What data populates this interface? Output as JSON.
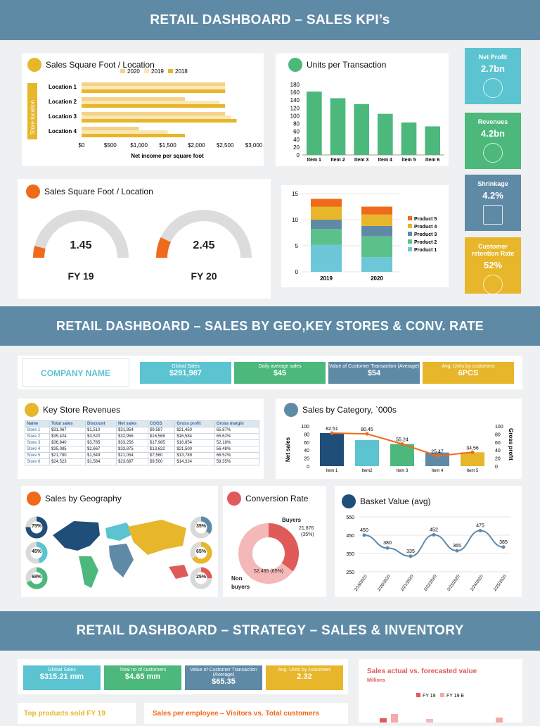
{
  "bands": {
    "b1": "RETAIL DASHBOARD – SALES KPI’s",
    "b2": "RETAIL DASHBOARD – SALES BY GEO,KEY STORES & CONV. RATE",
    "b3": "RETAIL DASHBOARD – STRATEGY – SALES & INVENTORY"
  },
  "panels": {
    "sqft1": "Sales Square Foot / Location",
    "upt": "Units per Transaction",
    "sqft2": "Sales Square Foot / Location",
    "keystore": "Key Store Revenues",
    "category": "Sales by Category, `000s",
    "geo": "Sales by Geography",
    "conv": "Conversion Rate",
    "basket": "Basket Value (avg)",
    "actual": "Sales actual vs. forecasted value",
    "actual_sub": "Millions",
    "top": "Top products sold FY 19",
    "perEmp": "Sales per employee – Visitors vs. Total customers"
  },
  "kpis": [
    {
      "label": "Net Profit",
      "value": "2.7bn",
      "color": "#5bc4d0",
      "icon": "money-cycle-icon"
    },
    {
      "label": "Revenues",
      "value": "4.2bn",
      "color": "#4cb87c",
      "icon": "hand-coin-icon"
    },
    {
      "label": "Shrinkage",
      "value": "4.2%",
      "color": "#5f8aa6",
      "icon": "shrink-arrow-icon"
    },
    {
      "label": "Customer retention Rate",
      "value": "52%",
      "color": "#e7b62a",
      "icon": "pie-icon"
    }
  ],
  "gauges": [
    {
      "value": "1.45",
      "label": "FY 19",
      "fraction": 0.08
    },
    {
      "value": "2.45",
      "label": "FY 20",
      "fraction": 0.14
    }
  ],
  "company": "COMPANY NAME",
  "tiles1": [
    {
      "label": "Global Sales",
      "value": "$291,987",
      "color": "#5bc4d0"
    },
    {
      "label": "Daily average sales",
      "value": "$45",
      "color": "#4cb87c"
    },
    {
      "label": "Value of Customer Transaction (Average)",
      "value": "$54",
      "color": "#5f8aa6"
    },
    {
      "label": "Avg. Units by customers",
      "value": "6PCS",
      "color": "#e7b62a"
    }
  ],
  "tiles2": [
    {
      "label": "Global Sales",
      "value": "$315.21 mm",
      "color": "#5bc4d0"
    },
    {
      "label": "Total no of customers",
      "value": "$4.65 mm",
      "color": "#4cb87c"
    },
    {
      "label": "Value of Customer Transaction (Average)",
      "value": "$65.35",
      "color": "#5f8aa6"
    },
    {
      "label": "Avg. Units by customers",
      "value": "2.32",
      "color": "#e7b62a"
    }
  ],
  "store_table": {
    "headers": [
      "Name",
      "Total sales",
      "Discount",
      "Net sales",
      "COGS",
      "Gross profit",
      "Gross margin"
    ],
    "rows": [
      [
        "Store 1",
        "$31,067",
        "$1,510",
        "$31,854",
        "$9,587",
        "$21,450",
        "65.87%"
      ],
      [
        "Store 2",
        "$35,424",
        "$3,520",
        "$32,956",
        "$16,568",
        "$16,584",
        "65.62%"
      ],
      [
        "Store 3",
        "$36,840",
        "$3,785",
        "$33,256",
        "$17,985",
        "$16,854",
        "52.18%"
      ],
      [
        "Store 4",
        "$35,085",
        "$2,667",
        "$33,875",
        "$13,632",
        "$21,500",
        "56.48%"
      ],
      [
        "Store 5",
        "$21,780",
        "$1,549",
        "$21,054",
        "$7,560",
        "$13,789",
        "66.52%"
      ],
      [
        "Store 6",
        "$24,523",
        "$1,584",
        "$23,687",
        "$9,500",
        "$14,324",
        "58.35%"
      ]
    ]
  },
  "geo_left": [
    {
      "label": "75%",
      "fraction": 0.75,
      "color": "#1f4e79"
    },
    {
      "label": "45%",
      "fraction": 0.45,
      "color": "#5bc4d0"
    },
    {
      "label": "68%",
      "fraction": 0.68,
      "color": "#4cb87c"
    }
  ],
  "geo_right": [
    {
      "label": "35%",
      "fraction": 0.35,
      "color": "#5f8aa6"
    },
    {
      "label": "65%",
      "fraction": 0.65,
      "color": "#e7b62a"
    },
    {
      "label": "25%",
      "fraction": 0.25,
      "color": "#e05a5a"
    }
  ],
  "conversion": {
    "buyers_label": "Buyers",
    "buyers_value": "21,876",
    "buyers_pct": "(35%)",
    "non_label_1": "Non",
    "non_label_2": "buyers",
    "non_value": "52,485 (65%)",
    "fraction": 0.35
  },
  "chart_data": [
    {
      "id": "sqft",
      "type": "bar",
      "orientation": "horizontal",
      "categories": [
        "Location 1",
        "Location 2",
        "Location 3",
        "Location 4"
      ],
      "series": [
        {
          "name": "2020",
          "values": [
            2500,
            1800,
            2500,
            1000
          ],
          "color": "#f3d28a"
        },
        {
          "name": "2019",
          "values": [
            2500,
            2400,
            2600,
            1500
          ],
          "color": "#fbe7b3"
        },
        {
          "name": "2018",
          "values": [
            2500,
            2500,
            2700,
            1800
          ],
          "color": "#e7b62a"
        }
      ],
      "xlabel": "Net income per square foot",
      "ylabel": "Store location",
      "xlim": [
        0,
        3000
      ],
      "xticks": [
        "$0",
        "$500",
        "$1,000",
        "$1,500",
        "$2,000",
        "$2,500",
        "$3,000"
      ]
    },
    {
      "id": "upt",
      "type": "bar",
      "categories": [
        "Item 1",
        "Item 2",
        "Item 3",
        "Item 4",
        "item 5",
        "Item 6"
      ],
      "values": [
        162,
        145,
        130,
        105,
        83,
        73
      ],
      "ylim": [
        0,
        180
      ],
      "yticks": [
        "0",
        "20",
        "40",
        "60",
        "80",
        "100",
        "120",
        "140",
        "160",
        "180"
      ],
      "color": "#4cb87c"
    },
    {
      "id": "stacked",
      "type": "bar",
      "stacked": true,
      "categories": [
        "2019",
        "2020"
      ],
      "series": [
        {
          "name": "Product 1",
          "values": [
            5.2,
            2.8
          ],
          "color": "#6cc7d8"
        },
        {
          "name": "Product 2",
          "values": [
            3.0,
            4.0
          ],
          "color": "#5cc08b"
        },
        {
          "name": "Product 3",
          "values": [
            1.8,
            2.0
          ],
          "color": "#5f8aa6"
        },
        {
          "name": "Product 4",
          "values": [
            2.5,
            2.2
          ],
          "color": "#e7b62a"
        },
        {
          "name": "Product 5",
          "values": [
            1.5,
            1.5
          ],
          "color": "#ef6a1a"
        }
      ],
      "ylim": [
        0,
        15
      ],
      "yticks": [
        "0",
        "5",
        "10",
        "15"
      ]
    },
    {
      "id": "category",
      "type": "bar",
      "categories": [
        "Item 1",
        "Item2",
        "Item 3",
        "Item 4",
        "Item 5"
      ],
      "values": [
        82.51,
        65,
        55.24,
        34,
        34.56
      ],
      "colors": [
        "#1f4e79",
        "#5bc4d0",
        "#4cb87c",
        "#5f8aa6",
        "#e7b62a"
      ],
      "line": [
        82.51,
        80.45,
        55.24,
        25.47,
        34.56
      ],
      "line_labels": [
        "82.51",
        "80.45",
        "55.24",
        "25.47",
        "34.56"
      ],
      "ylabel": "Net sales",
      "y2label": "Gross profit",
      "ylim": [
        0,
        100
      ],
      "yticks": [
        "0",
        "20",
        "40",
        "60",
        "80",
        "100"
      ]
    },
    {
      "id": "basket",
      "type": "line",
      "x": [
        "2/19/2020",
        "2/20/2020",
        "2/21/2020",
        "2/22/2020",
        "2/23/2020",
        "2/24/2020",
        "2/25/2020"
      ],
      "values": [
        450,
        380,
        335,
        452,
        365,
        475,
        385
      ],
      "labels": [
        "450",
        "380",
        "335",
        "452",
        "365",
        "475",
        "385"
      ],
      "ylim": [
        250,
        550
      ],
      "yticks": [
        "250",
        "350",
        "450",
        "550"
      ]
    },
    {
      "id": "forecast",
      "type": "bar",
      "series": [
        {
          "name": "FY 19"
        },
        {
          "name": "FY 19 E"
        }
      ],
      "colors": [
        "#e05a5a",
        "#f4a9a9"
      ]
    }
  ]
}
